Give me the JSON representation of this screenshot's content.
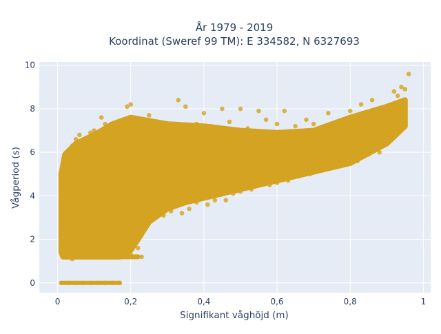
{
  "chart_data": {
    "type": "scatter",
    "title": "År 1979 - 2019",
    "subtitle": "Koordinat (Sweref 99 TM): E 334582, N 6327693",
    "xlabel": "Signifikant våghöjd (m)",
    "ylabel": "Vågperiod (s)",
    "xlim": [
      -0.05,
      1.02
    ],
    "ylim": [
      -0.45,
      10.15
    ],
    "x_ticks": [
      0,
      0.2,
      0.4,
      0.6,
      0.8,
      1
    ],
    "x_tick_labels": [
      "0",
      "0,2",
      "0,4",
      "0,6",
      "0,8",
      "1"
    ],
    "y_ticks": [
      0,
      2,
      4,
      6,
      8,
      10
    ],
    "y_tick_labels": [
      "0",
      "2",
      "4",
      "6",
      "8",
      "10"
    ],
    "grid": true,
    "marker_color": "#D4A321",
    "background_color": "#E5ECF6",
    "series": [
      {
        "points": [
          [
            0.01,
            4.15
          ],
          [
            0.01,
            2.1
          ],
          [
            0.01,
            1.5
          ],
          [
            0.02,
            5.3
          ],
          [
            0.02,
            1.3
          ],
          [
            0.03,
            5.8
          ],
          [
            0.03,
            1.2
          ],
          [
            0.04,
            6.3
          ],
          [
            0.04,
            1.1
          ],
          [
            0.05,
            6.6
          ],
          [
            0.06,
            6.8
          ],
          [
            0.06,
            1.2
          ],
          [
            0.07,
            5.5
          ],
          [
            0.08,
            5.2
          ],
          [
            0.09,
            6.9
          ],
          [
            0.1,
            7.0
          ],
          [
            0.11,
            6.7
          ],
          [
            0.12,
            7.6
          ],
          [
            0.12,
            2.0
          ],
          [
            0.13,
            7.3
          ],
          [
            0.14,
            7.0
          ],
          [
            0.15,
            5.6
          ],
          [
            0.15,
            1.6
          ],
          [
            0.16,
            5.9
          ],
          [
            0.17,
            1.8
          ],
          [
            0.18,
            7.2
          ],
          [
            0.18,
            2.0
          ],
          [
            0.19,
            8.1
          ],
          [
            0.2,
            8.2
          ],
          [
            0.2,
            1.3
          ],
          [
            0.21,
            7.4
          ],
          [
            0.22,
            3.9
          ],
          [
            0.22,
            1.6
          ],
          [
            0.23,
            1.2
          ],
          [
            0.24,
            3.7
          ],
          [
            0.25,
            7.7
          ],
          [
            0.26,
            3.2
          ],
          [
            0.28,
            7.3
          ],
          [
            0.29,
            3.1
          ],
          [
            0.3,
            7.2
          ],
          [
            0.31,
            3.3
          ],
          [
            0.33,
            8.4
          ],
          [
            0.34,
            3.2
          ],
          [
            0.35,
            8.1
          ],
          [
            0.36,
            3.4
          ],
          [
            0.38,
            7.3
          ],
          [
            0.38,
            3.7
          ],
          [
            0.4,
            7.8
          ],
          [
            0.41,
            3.6
          ],
          [
            0.42,
            7.2
          ],
          [
            0.43,
            3.8
          ],
          [
            0.45,
            8.0
          ],
          [
            0.46,
            3.8
          ],
          [
            0.47,
            7.4
          ],
          [
            0.48,
            4.1
          ],
          [
            0.5,
            8.0
          ],
          [
            0.5,
            4.2
          ],
          [
            0.52,
            7.1
          ],
          [
            0.53,
            4.3
          ],
          [
            0.55,
            7.9
          ],
          [
            0.55,
            4.5
          ],
          [
            0.57,
            7.5
          ],
          [
            0.58,
            4.5
          ],
          [
            0.6,
            7.3
          ],
          [
            0.6,
            4.6
          ],
          [
            0.62,
            7.9
          ],
          [
            0.63,
            4.7
          ],
          [
            0.65,
            7.2
          ],
          [
            0.66,
            4.9
          ],
          [
            0.68,
            7.5
          ],
          [
            0.69,
            5.0
          ],
          [
            0.7,
            7.3
          ],
          [
            0.72,
            5.2
          ],
          [
            0.74,
            7.8
          ],
          [
            0.75,
            5.3
          ],
          [
            0.78,
            7.4
          ],
          [
            0.78,
            5.4
          ],
          [
            0.8,
            7.9
          ],
          [
            0.82,
            5.6
          ],
          [
            0.83,
            8.2
          ],
          [
            0.85,
            5.9
          ],
          [
            0.86,
            8.4
          ],
          [
            0.88,
            6.0
          ],
          [
            0.89,
            7.6
          ],
          [
            0.91,
            6.7
          ],
          [
            0.92,
            8.8
          ],
          [
            0.93,
            8.6
          ],
          [
            0.94,
            9.0
          ],
          [
            0.95,
            8.9
          ],
          [
            0.96,
            9.6
          ],
          [
            0.01,
            0.0
          ],
          [
            0.03,
            0.0
          ],
          [
            0.05,
            0.0
          ],
          [
            0.07,
            0.0
          ],
          [
            0.09,
            0.0
          ],
          [
            0.11,
            0.0
          ],
          [
            0.13,
            0.0
          ],
          [
            0.15,
            0.0
          ],
          [
            0.17,
            0.0
          ],
          [
            0.17,
            1.5
          ]
        ]
      }
    ]
  }
}
